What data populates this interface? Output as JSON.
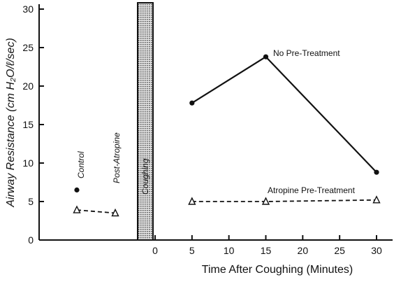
{
  "chart_data": {
    "type": "line",
    "title": "",
    "xlabel": "Time After Coughing (Minutes)",
    "ylabel": "Airway Resistance (cm H₂O/ℓ/sec)",
    "ylim": [
      0,
      30
    ],
    "xlim": [
      0,
      30
    ],
    "x_ticks": [
      0,
      5,
      10,
      15,
      20,
      25,
      30
    ],
    "y_ticks": [
      0,
      5,
      10,
      15,
      20,
      25,
      30
    ],
    "grid": false,
    "series": [
      {
        "name": "No Pre-Treatment",
        "style": "solid",
        "marker": "filled-circle",
        "x": [
          5,
          15,
          30
        ],
        "y": [
          17.8,
          23.8,
          8.8
        ]
      },
      {
        "name": "Atropine Pre-Treatment",
        "style": "dashed",
        "marker": "open-triangle",
        "x": [
          5,
          15,
          30
        ],
        "y": [
          5.0,
          5.0,
          5.2
        ]
      }
    ],
    "baseline": {
      "control_label": "Control",
      "post_atropine_label": "Post-Atropine",
      "control_circle": 6.5,
      "control_triangle": 3.9,
      "post_atropine_triangle": 3.5
    },
    "coughing_band_label": "Coughing"
  },
  "colors": {
    "ink": "#111111",
    "band": "#bdbdbd"
  }
}
